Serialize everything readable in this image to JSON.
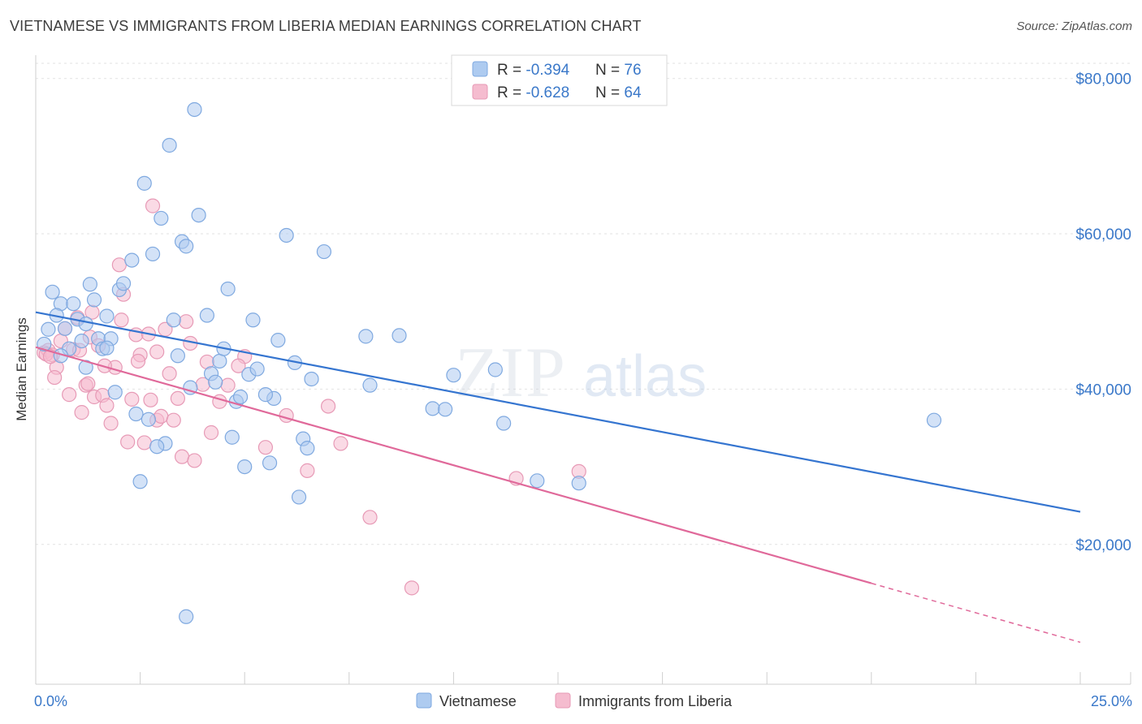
{
  "title": "VIETNAMESE VS IMMIGRANTS FROM LIBERIA MEDIAN EARNINGS CORRELATION CHART",
  "source": "Source: ZipAtlas.com",
  "watermark": {
    "zip": "ZIP",
    "atlas": "atlas"
  },
  "colors": {
    "blue_fill": "#aecbf0",
    "blue_line": "#3575d0",
    "pink_fill": "#f5bccf",
    "pink_line": "#e0699a",
    "tick_text": "#3a78c9",
    "grid": "#dcdcdc"
  },
  "legend": {
    "rows": [
      {
        "r_label": "R = ",
        "r_value": "-0.394",
        "n_label": "N = ",
        "n_value": "76"
      },
      {
        "r_label": "R = ",
        "r_value": "-0.628",
        "n_label": "N = ",
        "n_value": "64"
      }
    ]
  },
  "chart_data": {
    "type": "scatter",
    "title": "VIETNAMESE VS IMMIGRANTS FROM LIBERIA MEDIAN EARNINGS CORRELATION CHART",
    "xlabel": "",
    "ylabel": "Median Earnings",
    "xlim": [
      0,
      25
    ],
    "ylim": [
      2000,
      83000
    ],
    "x_tick_labels": [
      {
        "value": 0,
        "label": "0.0%"
      },
      {
        "value": 25,
        "label": "25.0%"
      }
    ],
    "y_tick_labels": [
      {
        "value": 20000,
        "label": "$20,000"
      },
      {
        "value": 40000,
        "label": "$40,000"
      },
      {
        "value": 60000,
        "label": "$60,000"
      },
      {
        "value": 80000,
        "label": "$80,000"
      }
    ],
    "grid": true,
    "legend_position": "bottom-center",
    "series": [
      {
        "name": "Vietnamese",
        "color": "#aecbf0",
        "r": -0.394,
        "n": 76,
        "trend": {
          "x0": 0.0,
          "y0": 49900,
          "x1": 25.0,
          "y1": 24200
        },
        "points": [
          [
            0.3,
            47700
          ],
          [
            0.6,
            51000
          ],
          [
            0.9,
            51000
          ],
          [
            1.0,
            49000
          ],
          [
            1.1,
            46200
          ],
          [
            1.2,
            48400
          ],
          [
            1.3,
            53500
          ],
          [
            0.4,
            52500
          ],
          [
            0.5,
            49500
          ],
          [
            0.7,
            47800
          ],
          [
            0.8,
            45200
          ],
          [
            1.4,
            51500
          ],
          [
            1.5,
            46500
          ],
          [
            1.6,
            45200
          ],
          [
            1.7,
            49400
          ],
          [
            1.8,
            46500
          ],
          [
            2.0,
            52800
          ],
          [
            2.1,
            53600
          ],
          [
            2.3,
            56600
          ],
          [
            2.4,
            36800
          ],
          [
            2.6,
            66500
          ],
          [
            2.7,
            36100
          ],
          [
            2.8,
            57400
          ],
          [
            3.0,
            62000
          ],
          [
            3.1,
            33000
          ],
          [
            3.2,
            71400
          ],
          [
            3.3,
            48900
          ],
          [
            3.4,
            44300
          ],
          [
            3.5,
            59000
          ],
          [
            3.6,
            58400
          ],
          [
            3.8,
            76000
          ],
          [
            3.9,
            62400
          ],
          [
            4.1,
            49500
          ],
          [
            4.2,
            42000
          ],
          [
            4.3,
            40900
          ],
          [
            4.4,
            43600
          ],
          [
            4.5,
            45200
          ],
          [
            4.6,
            52900
          ],
          [
            4.7,
            33800
          ],
          [
            4.8,
            38400
          ],
          [
            4.9,
            39000
          ],
          [
            5.0,
            30000
          ],
          [
            5.1,
            41900
          ],
          [
            5.2,
            48900
          ],
          [
            5.3,
            42600
          ],
          [
            5.6,
            30500
          ],
          [
            5.7,
            38800
          ],
          [
            5.8,
            46300
          ],
          [
            6.0,
            59800
          ],
          [
            6.2,
            43400
          ],
          [
            6.3,
            26100
          ],
          [
            6.4,
            33600
          ],
          [
            6.5,
            32400
          ],
          [
            6.6,
            41300
          ],
          [
            6.9,
            57700
          ],
          [
            7.9,
            46800
          ],
          [
            8.0,
            40500
          ],
          [
            8.7,
            46900
          ],
          [
            9.5,
            37500
          ],
          [
            9.8,
            37400
          ],
          [
            10.0,
            41800
          ],
          [
            11.0,
            42500
          ],
          [
            11.2,
            35600
          ],
          [
            12.0,
            28200
          ],
          [
            13.0,
            27900
          ],
          [
            21.5,
            36000
          ],
          [
            1.2,
            42800
          ],
          [
            2.9,
            32600
          ],
          [
            3.6,
            10700
          ],
          [
            2.5,
            28100
          ],
          [
            1.9,
            39600
          ],
          [
            3.7,
            40200
          ],
          [
            0.2,
            45800
          ],
          [
            0.6,
            44300
          ],
          [
            1.7,
            45300
          ],
          [
            5.5,
            39300
          ]
        ]
      },
      {
        "name": "Immigrants from Liberia",
        "color": "#f5bccf",
        "r": -0.628,
        "n": 64,
        "trend": {
          "x0": 0.0,
          "y0": 45400,
          "x1": 20.0,
          "y1": 15000,
          "dash_x1": 25.0,
          "dash_y1": 7400
        },
        "points": [
          [
            0.2,
            44700
          ],
          [
            0.3,
            45000
          ],
          [
            0.4,
            44400
          ],
          [
            0.5,
            42800
          ],
          [
            0.6,
            46200
          ],
          [
            0.7,
            47800
          ],
          [
            0.8,
            39300
          ],
          [
            0.9,
            45100
          ],
          [
            1.0,
            49200
          ],
          [
            1.1,
            37000
          ],
          [
            1.2,
            40500
          ],
          [
            1.3,
            46700
          ],
          [
            1.4,
            39000
          ],
          [
            1.5,
            45600
          ],
          [
            1.6,
            39200
          ],
          [
            1.7,
            37900
          ],
          [
            1.8,
            35600
          ],
          [
            1.9,
            42800
          ],
          [
            2.0,
            56000
          ],
          [
            2.1,
            52200
          ],
          [
            2.2,
            33200
          ],
          [
            2.3,
            38700
          ],
          [
            2.4,
            47000
          ],
          [
            2.5,
            44400
          ],
          [
            2.6,
            33100
          ],
          [
            2.7,
            47100
          ],
          [
            2.8,
            63600
          ],
          [
            2.9,
            36000
          ],
          [
            3.0,
            36500
          ],
          [
            3.1,
            47700
          ],
          [
            3.2,
            42000
          ],
          [
            3.3,
            36000
          ],
          [
            3.4,
            38800
          ],
          [
            3.5,
            31300
          ],
          [
            3.6,
            48700
          ],
          [
            3.7,
            45900
          ],
          [
            3.8,
            30800
          ],
          [
            4.0,
            40600
          ],
          [
            4.1,
            43500
          ],
          [
            4.2,
            34400
          ],
          [
            4.4,
            38400
          ],
          [
            4.6,
            40500
          ],
          [
            5.0,
            44200
          ],
          [
            5.5,
            32500
          ],
          [
            6.0,
            36600
          ],
          [
            6.5,
            29500
          ],
          [
            7.0,
            37800
          ],
          [
            7.3,
            33000
          ],
          [
            8.0,
            23500
          ],
          [
            9.0,
            14400
          ],
          [
            11.5,
            28500
          ],
          [
            13.0,
            29400
          ],
          [
            0.25,
            44500
          ],
          [
            0.45,
            41500
          ],
          [
            1.05,
            45000
          ],
          [
            1.65,
            43000
          ],
          [
            2.45,
            43600
          ],
          [
            2.75,
            38600
          ],
          [
            2.9,
            44800
          ],
          [
            4.85,
            43000
          ],
          [
            1.35,
            49900
          ],
          [
            2.05,
            48900
          ],
          [
            0.35,
            44200
          ],
          [
            1.25,
            40700
          ]
        ]
      }
    ]
  }
}
